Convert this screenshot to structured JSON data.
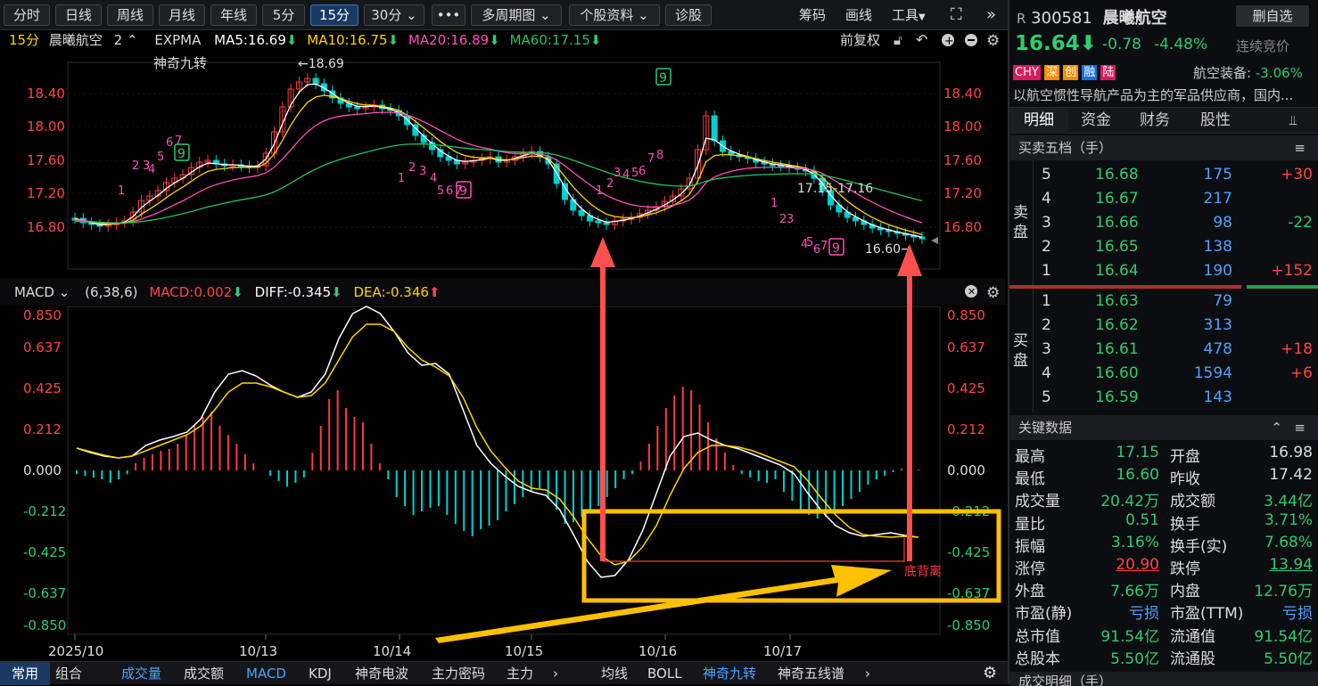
{
  "toolbar": {
    "periods": [
      "分时",
      "日线",
      "周线",
      "月线",
      "年线",
      "5分",
      "15分",
      "30分",
      "多周期图",
      "个股资料",
      "诊股"
    ],
    "active": "15分",
    "right": [
      "筹码",
      "画线",
      "工具"
    ]
  },
  "info": {
    "period": "15分",
    "name": "晨曦航空",
    "count": "2",
    "indicator": "EXPMA",
    "ma5": "MA5:16.69",
    "ma10": "MA10:16.75",
    "ma20": "MA20:16.89",
    "ma60": "MA60:17.15",
    "adjust": "前复权",
    "overlay": "神奇九转"
  },
  "macd_info": {
    "name": "MACD",
    "params": "(6,38,6)",
    "macd": "MACD:0.002",
    "diff": "DIFF:-0.345",
    "dea": "DEA:-0.346"
  },
  "colors": {
    "up": "#ff3b3b",
    "down": "#00d0d0",
    "ma5": "#ffffff",
    "ma10": "#ffd400",
    "ma20": "#ff4fb8",
    "ma60": "#22c55e",
    "macd_dea": "#ffd400",
    "annotation_box": "#ffc000",
    "arrow": "#ff5050"
  },
  "price_axis": {
    "labels": [
      "18.40",
      "18.00",
      "17.60",
      "17.20",
      "16.80"
    ]
  },
  "macd_axis": {
    "labels": [
      "0.850",
      "0.637",
      "0.425",
      "0.212",
      "0.000",
      "-0.212",
      "-0.425",
      "-0.637",
      "-0.850"
    ]
  },
  "x_axis": {
    "labels": [
      "2025/10",
      "10/13",
      "10/14",
      "10/15",
      "10/16",
      "10/17"
    ]
  },
  "markers": {
    "high": "←18.69",
    "low": "16.60→",
    "range": "17.15-17.16",
    "divergence": "底背离"
  },
  "td_up": [
    "1",
    "2",
    "3",
    "4",
    "5",
    "6",
    "7",
    "8",
    "9"
  ],
  "td_down": [
    "1",
    "2",
    "3",
    "4",
    "5",
    "6",
    "7",
    "8",
    "9"
  ],
  "bottom_tabs": {
    "left": [
      "常用",
      "组合"
    ],
    "indicators": [
      "成交量",
      "成交额",
      "MACD",
      "KDJ",
      "神奇电波",
      "主力密码",
      "主力"
    ],
    "active": "MACD",
    "right": [
      "均线",
      "BOLL",
      "神奇九转",
      "神奇五线谱"
    ],
    "right_active": "神奇九转"
  },
  "stock": {
    "code": "300581",
    "prefix": "R",
    "name": "晨曦航空",
    "fav": "删自选",
    "price": "16.64",
    "change": "-0.78",
    "pct": "-4.48%",
    "auction": "连续竞价",
    "tags": [
      "CHY",
      "深",
      "创",
      "融",
      "陆"
    ],
    "sector": "航空装备:",
    "sector_pct": "-3.06%",
    "desc": "以航空惯性导航产品为主的军品供应商，国内..."
  },
  "tabs": [
    "明细",
    "资金",
    "财务",
    "股性"
  ],
  "book_title": "买卖五档（手）",
  "sell_label": [
    "卖",
    "盘"
  ],
  "buy_label": [
    "买",
    "盘"
  ],
  "sells": [
    {
      "lv": "5",
      "p": "16.68",
      "v": "175",
      "c": "+30"
    },
    {
      "lv": "4",
      "p": "16.67",
      "v": "217",
      "c": ""
    },
    {
      "lv": "3",
      "p": "16.66",
      "v": "98",
      "c": "-22"
    },
    {
      "lv": "2",
      "p": "16.65",
      "v": "138",
      "c": ""
    },
    {
      "lv": "1",
      "p": "16.64",
      "v": "190",
      "c": "+152"
    }
  ],
  "buys": [
    {
      "lv": "1",
      "p": "16.63",
      "v": "79",
      "c": ""
    },
    {
      "lv": "2",
      "p": "16.62",
      "v": "313",
      "c": ""
    },
    {
      "lv": "3",
      "p": "16.61",
      "v": "478",
      "c": "+18"
    },
    {
      "lv": "4",
      "p": "16.60",
      "v": "1594",
      "c": "+6"
    },
    {
      "lv": "5",
      "p": "16.59",
      "v": "143",
      "c": ""
    }
  ],
  "key_title": "关键数据",
  "keydata": [
    [
      "最高",
      "17.15",
      "开盘",
      "16.98"
    ],
    [
      "最低",
      "16.60",
      "昨收",
      "17.42"
    ],
    [
      "成交量",
      "20.42万",
      "成交额",
      "3.44亿"
    ],
    [
      "量比",
      "0.51",
      "换手",
      "3.71%"
    ],
    [
      "振幅",
      "3.16%",
      "换手(实)",
      "7.68%"
    ],
    [
      "涨停",
      "20.90",
      "跌停",
      "13.94"
    ],
    [
      "外盘",
      "7.66万",
      "内盘",
      "12.76万"
    ],
    [
      "市盈(静)",
      "亏损",
      "市盈(TTM)",
      "亏损"
    ],
    [
      "总市值",
      "91.54亿",
      "流通值",
      "91.54亿"
    ],
    [
      "总股本",
      "5.50亿",
      "流通股",
      "5.50亿"
    ]
  ],
  "bottom_partial": "成交明细（手）"
}
